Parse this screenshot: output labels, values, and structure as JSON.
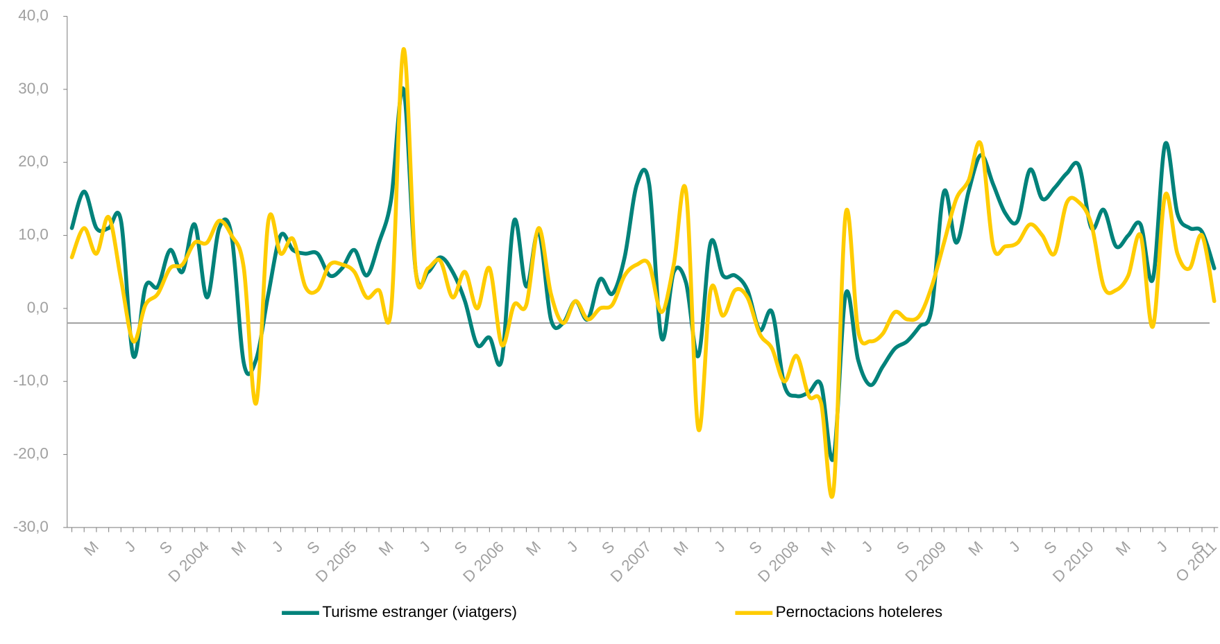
{
  "chart_data": {
    "type": "line",
    "categories": [
      null,
      null,
      "M",
      null,
      null,
      "J",
      null,
      null,
      "S",
      null,
      null,
      "D 2004",
      null,
      null,
      "M",
      null,
      null,
      "J",
      null,
      null,
      "S",
      null,
      null,
      "D 2005",
      null,
      null,
      "M",
      null,
      null,
      "J",
      null,
      null,
      "S",
      null,
      null,
      "D 2006",
      null,
      null,
      "M",
      null,
      null,
      "J",
      null,
      null,
      "S",
      null,
      null,
      "D 2007",
      null,
      null,
      "M",
      null,
      null,
      "J",
      null,
      null,
      "S",
      null,
      null,
      "D 2008",
      null,
      null,
      "M",
      null,
      null,
      "J",
      null,
      null,
      "S",
      null,
      null,
      "D 2009",
      null,
      null,
      "M",
      null,
      null,
      "J",
      null,
      null,
      "S",
      null,
      null,
      "D 2010",
      null,
      null,
      "M",
      null,
      null,
      "J",
      null,
      null,
      "S",
      "O 2011"
    ],
    "series": [
      {
        "name": "Turisme estranger (viatgers)",
        "color": "#00827a",
        "values": [
          11,
          16,
          11,
          11,
          12,
          -6.5,
          3,
          3,
          8,
          5,
          11.5,
          1.5,
          11,
          10,
          -7.5,
          -7,
          2,
          10,
          8,
          7.5,
          7.5,
          4.5,
          5.5,
          8,
          4.5,
          9,
          15,
          30,
          5,
          5,
          7,
          5,
          1,
          -5,
          -4,
          -7,
          12,
          3,
          10.5,
          -1.5,
          -2,
          1,
          -1.5,
          4,
          2,
          7,
          17,
          17,
          -4,
          5,
          3.5,
          -6.5,
          9,
          4.5,
          4.5,
          2.5,
          -3,
          -0.5,
          -10.5,
          -12,
          -11.5,
          -10.5,
          -20.5,
          2,
          -7,
          -10.5,
          -8,
          -5.5,
          -4.5,
          -2.5,
          0,
          16,
          9,
          16,
          21,
          17,
          13,
          12,
          19,
          15,
          16.5,
          18.5,
          19.5,
          11,
          13.5,
          8.5,
          10,
          11.5,
          4,
          22.5,
          13,
          11,
          10.5,
          5.5
        ]
      },
      {
        "name": "Pernoctacions hoteleres",
        "color": "#ffcc00",
        "values": [
          7,
          11,
          7.5,
          12.5,
          4,
          -4.5,
          0.5,
          2,
          5.5,
          6,
          9,
          9,
          12,
          10,
          5.5,
          -13,
          12,
          7.5,
          9.5,
          3,
          2.5,
          6,
          6,
          5,
          1.5,
          2.5,
          0,
          35.5,
          5,
          5.5,
          6.5,
          1.5,
          5,
          0,
          5.5,
          -5,
          0.5,
          0.5,
          11,
          2,
          -2,
          1,
          -1.5,
          0,
          0.5,
          4.5,
          6,
          6,
          -0.5,
          6,
          16,
          -16.5,
          2.5,
          -1,
          2.5,
          1.5,
          -3.5,
          -5.5,
          -10,
          -6.5,
          -12,
          -13,
          -25,
          13,
          -3,
          -4.5,
          -3.5,
          -0.5,
          -1.5,
          -1,
          3,
          9,
          15,
          17.5,
          22.5,
          8.5,
          8.5,
          9,
          11.5,
          10,
          7.5,
          14.5,
          14.5,
          11.5,
          3,
          2.5,
          4.5,
          10,
          -2.5,
          15.5,
          7.5,
          5.5,
          10,
          1
        ]
      }
    ],
    "ylim": [
      -30,
      40
    ],
    "yticks": [
      {
        "value": -30,
        "label": "-30,0"
      },
      {
        "value": -20,
        "label": "-20,0"
      },
      {
        "value": -10,
        "label": "-10,0"
      },
      {
        "value": 0,
        "label": "0,0"
      },
      {
        "value": 10,
        "label": "10,0"
      },
      {
        "value": 20,
        "label": "20,0"
      },
      {
        "value": 30,
        "label": "30,0"
      },
      {
        "value": 40,
        "label": "40,0"
      }
    ],
    "reference_line": -2,
    "grid": false,
    "legend": "bottom"
  }
}
